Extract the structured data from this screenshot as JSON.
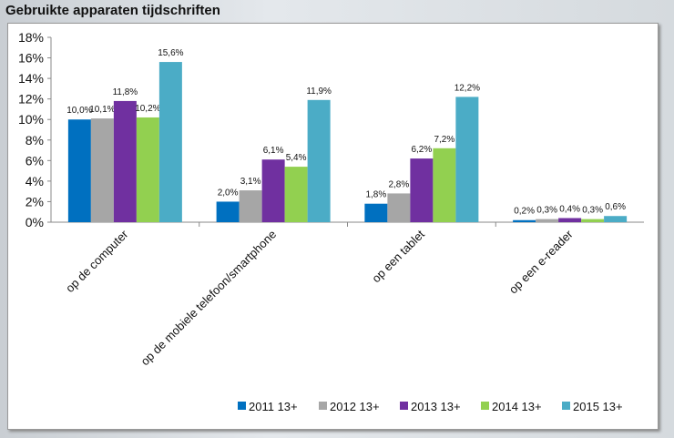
{
  "chart_data": {
    "type": "bar",
    "title": "Gebruikte apparaten tijdschriften",
    "categories": [
      "op de computer",
      "op de mobiele telefoon/smartphone",
      "op een tablet",
      "op een e-reader"
    ],
    "series": [
      {
        "name": "2011 13+",
        "color": "#0070c0",
        "values": [
          10.0,
          2.0,
          1.8,
          0.2
        ],
        "labels": [
          "10,0%",
          "2,0%",
          "1,8%",
          "0,2%"
        ]
      },
      {
        "name": "2012 13+",
        "color": "#a6a6a6",
        "values": [
          10.1,
          3.1,
          2.8,
          0.3
        ],
        "labels": [
          "10,1%",
          "3,1%",
          "2,8%",
          "0,3%"
        ]
      },
      {
        "name": "2013 13+",
        "color": "#7030a0",
        "values": [
          11.8,
          6.1,
          6.2,
          0.4
        ],
        "labels": [
          "11,8%",
          "6,1%",
          "6,2%",
          "0,4%"
        ]
      },
      {
        "name": "2014 13+",
        "color": "#92d050",
        "values": [
          10.2,
          5.4,
          7.2,
          0.3
        ],
        "labels": [
          "10,2%",
          "5,4%",
          "7,2%",
          "0,3%"
        ]
      },
      {
        "name": "2015 13+",
        "color": "#4bacc6",
        "values": [
          15.6,
          11.9,
          12.2,
          0.6
        ],
        "labels": [
          "15,6%",
          "11,9%",
          "12,2%",
          "0,6%"
        ]
      }
    ],
    "yticks": [
      "0%",
      "2%",
      "4%",
      "6%",
      "8%",
      "10%",
      "12%",
      "14%",
      "16%",
      "18%"
    ],
    "ylim": [
      0,
      18
    ],
    "grid": false,
    "legend": "bottom-right"
  }
}
